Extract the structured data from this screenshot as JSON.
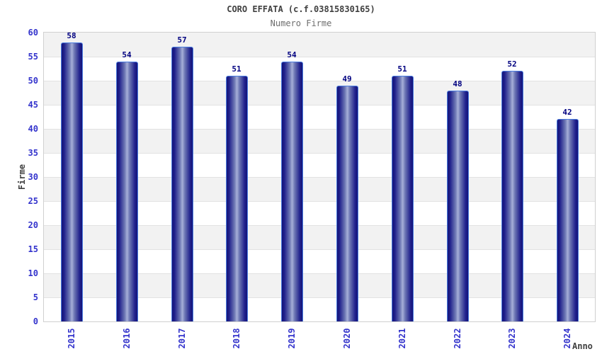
{
  "header": {
    "title": "CORO EFFATA (c.f.03815830165)",
    "subtitle": "Numero Firme"
  },
  "chart_data": {
    "type": "bar",
    "title": "CORO EFFATA (c.f.03815830165)",
    "subtitle": "Numero Firme",
    "xlabel": "Anno",
    "ylabel": "Firme",
    "categories": [
      "2015",
      "2016",
      "2017",
      "2018",
      "2019",
      "2020",
      "2021",
      "2022",
      "2023",
      "2024"
    ],
    "values": [
      58,
      54,
      57,
      51,
      54,
      49,
      51,
      48,
      52,
      42
    ],
    "ylim": [
      0,
      60
    ],
    "ytick_step": 5,
    "yticks": [
      0,
      5,
      10,
      15,
      20,
      25,
      30,
      35,
      40,
      45,
      50,
      55,
      60
    ],
    "legend": "none",
    "grid": "alternating-horizontal-bands",
    "value_labels": true,
    "colors": {
      "title": "#404040",
      "subtitle": "#6e6e6e",
      "axis_title": "#404040",
      "tick_label": "#3333cc",
      "value_label": "#000080",
      "bar_border": "#4a7ce0",
      "bar_dark": "#141478",
      "bar_dark2": "#20208c",
      "bar_mid": "#6d77b4",
      "bar_light": "#a6afd8",
      "band_gray": "#f2f2f2",
      "band_white": "#ffffff",
      "grid_line": "#e2e2e2",
      "plot_border": "#d0d0d0"
    }
  }
}
